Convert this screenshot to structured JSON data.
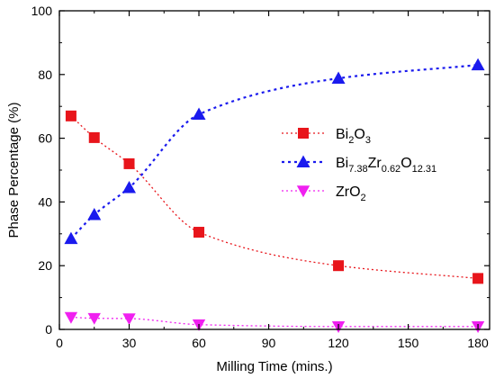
{
  "chart_data": {
    "type": "line",
    "xlabel": "Milling Time (mins.)",
    "ylabel": "Phase Percentage (%)",
    "xlim": [
      0,
      185
    ],
    "ylim": [
      0,
      100
    ],
    "xticks": [
      0,
      30,
      60,
      90,
      120,
      150,
      180
    ],
    "yticks": [
      0,
      20,
      40,
      60,
      80,
      100
    ],
    "legend_position": "center-right",
    "grid": false,
    "series": [
      {
        "name": "Bi2O3",
        "label_parts": [
          {
            "text": "Bi"
          },
          {
            "text": "2",
            "sub": true
          },
          {
            "text": "O"
          },
          {
            "text": "3",
            "sub": true
          }
        ],
        "marker": "square",
        "color": "#e8151b",
        "x": [
          5,
          15,
          30,
          60,
          120,
          180
        ],
        "y": [
          67,
          60.2,
          52,
          30.5,
          20,
          16
        ]
      },
      {
        "name": "Bi7.38Zr0.62O12.31",
        "label_parts": [
          {
            "text": "Bi"
          },
          {
            "text": "7.38",
            "sub": true
          },
          {
            "text": "Zr"
          },
          {
            "text": "0.62",
            "sub": true
          },
          {
            "text": "O"
          },
          {
            "text": "12.31",
            "sub": true
          }
        ],
        "marker": "triangle-up",
        "color": "#1a1aee",
        "x": [
          5,
          15,
          30,
          60,
          120,
          180
        ],
        "y": [
          28.5,
          36,
          44.5,
          67.5,
          78.8,
          83
        ]
      },
      {
        "name": "ZrO2",
        "label_parts": [
          {
            "text": "ZrO"
          },
          {
            "text": "2",
            "sub": true
          }
        ],
        "marker": "triangle-down",
        "color": "#f020f0",
        "x": [
          5,
          15,
          30,
          60,
          120,
          180
        ],
        "y": [
          3.8,
          3.5,
          3.4,
          1.5,
          0.9,
          0.9
        ]
      }
    ]
  }
}
